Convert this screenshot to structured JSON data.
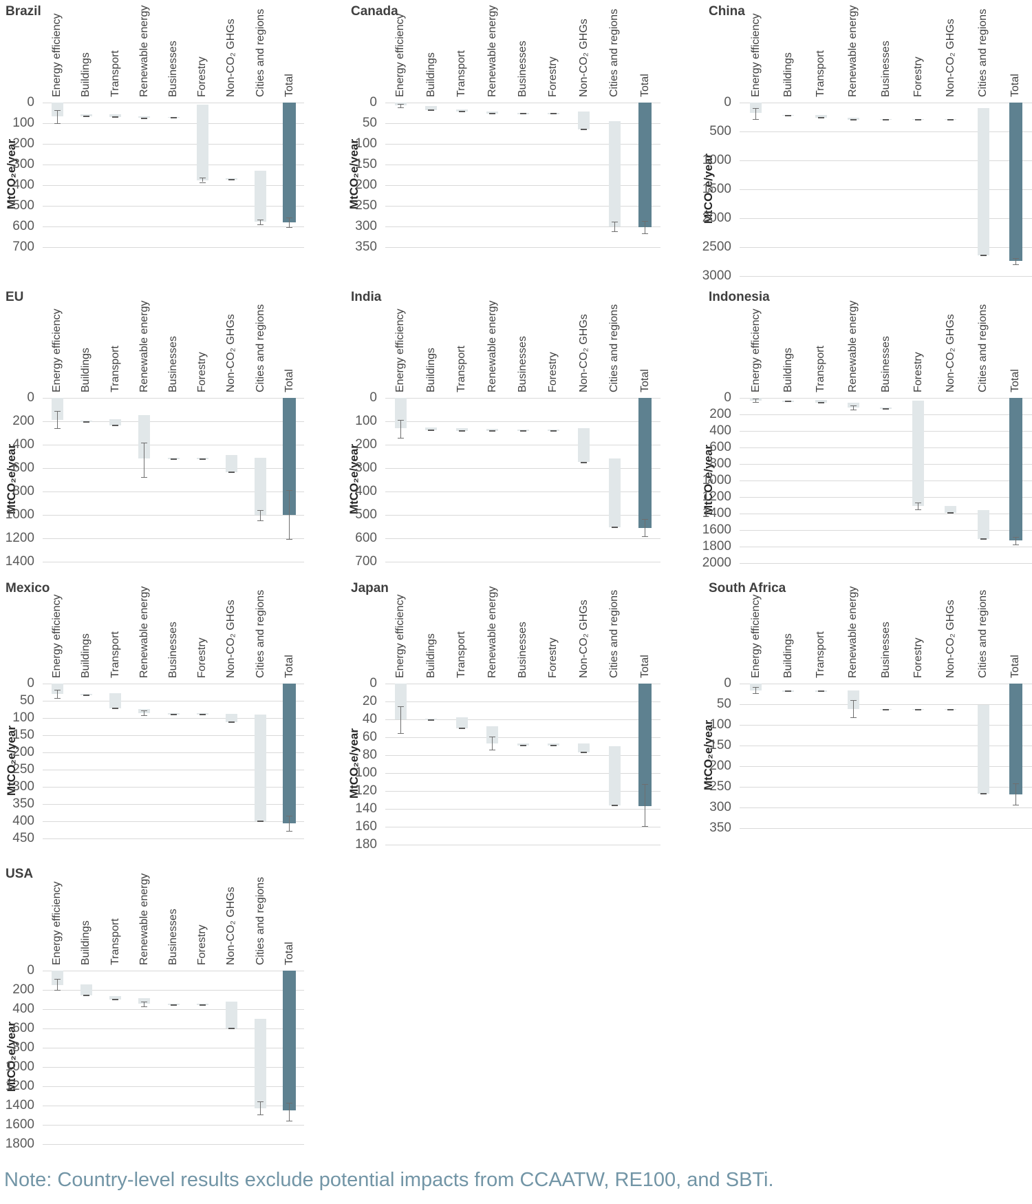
{
  "note": "Note: Country-level results exclude potential impacts from CCAATW, RE100, and SBTi.",
  "y_axis_label": "MtCO₂e/year",
  "colors": {
    "bar_light": "#e1e7e9",
    "bar_total": "#5e8190",
    "gridline": "#d9d9d9",
    "error_bar": "#6e6e6e",
    "marker_dash": "#595959",
    "title_text": "#3f3f3f",
    "tick_text": "#595959",
    "note_text": "#7295a6"
  },
  "categories": [
    "Energy efficiency",
    "Buildings",
    "Transport",
    "Renewable energy",
    "Businesses",
    "Forestry",
    "Non-CO₂ GHGs",
    "Cities and regions",
    "Total"
  ],
  "chart_data": [
    {
      "type": "bar",
      "title": "Brazil",
      "ylabel": "MtCO₂e/year",
      "ylim": [
        0,
        700
      ],
      "ytick_step": 100,
      "inverted_y": true,
      "grid_on": true,
      "grid": {
        "row": 0,
        "col": 0
      },
      "bars": [
        {
          "range": [
            0,
            68
          ],
          "error": [
            35,
            100
          ]
        },
        {
          "range": [
            58,
            66
          ],
          "error": null
        },
        {
          "range": [
            58,
            70
          ],
          "error": null
        },
        {
          "range": [
            66,
            75
          ],
          "error": null
        },
        {
          "range": [
            69,
            74
          ],
          "error": null
        },
        {
          "range": [
            10,
            375
          ],
          "error": [
            362,
            385
          ]
        },
        {
          "range": [
            366,
            372
          ],
          "error": null
        },
        {
          "range": [
            330,
            578
          ],
          "error": [
            566,
            590
          ]
        },
        {
          "range": [
            0,
            580
          ],
          "error": [
            556,
            602
          ]
        }
      ]
    },
    {
      "type": "bar",
      "title": "Canada",
      "ylabel": "MtCO₂e/year",
      "ylim": [
        0,
        350
      ],
      "ytick_step": 50,
      "inverted_y": true,
      "grid_on": true,
      "grid": {
        "row": 0,
        "col": 1
      },
      "bars": [
        {
          "range": [
            0,
            7
          ],
          "error": [
            3,
            11
          ]
        },
        {
          "range": [
            8,
            18
          ],
          "error": null
        },
        {
          "range": [
            16,
            22
          ],
          "error": null
        },
        {
          "range": [
            21,
            26
          ],
          "error": null
        },
        {
          "range": [
            25,
            27
          ],
          "error": null
        },
        {
          "range": [
            25,
            27
          ],
          "error": null
        },
        {
          "range": [
            22,
            65
          ],
          "error": null
        },
        {
          "range": [
            45,
            300
          ],
          "error": [
            288,
            311
          ]
        },
        {
          "range": [
            0,
            302
          ],
          "error": [
            287,
            317
          ]
        }
      ]
    },
    {
      "type": "bar",
      "title": "China",
      "ylabel": "MtCO₂e/year",
      "ylim": [
        0,
        3000
      ],
      "ytick_step": 500,
      "inverted_y": true,
      "grid_on": true,
      "grid": {
        "row": 0,
        "col": 2
      },
      "bars": [
        {
          "range": [
            0,
            180
          ],
          "error": [
            100,
            290
          ]
        },
        {
          "range": [
            212,
            228
          ],
          "error": null
        },
        {
          "range": [
            210,
            260
          ],
          "error": null
        },
        {
          "range": [
            258,
            300
          ],
          "error": null
        },
        {
          "range": [
            280,
            296
          ],
          "error": null
        },
        {
          "range": [
            280,
            296
          ],
          "error": null
        },
        {
          "range": [
            280,
            296
          ],
          "error": null
        },
        {
          "range": [
            95,
            2640
          ],
          "error": null
        },
        {
          "range": [
            0,
            2740
          ],
          "error": [
            2690,
            2800
          ]
        }
      ]
    },
    {
      "type": "bar",
      "title": "EU",
      "ylabel": "MtCO₂e/year",
      "ylim": [
        0,
        1400
      ],
      "ytick_step": 200,
      "inverted_y": true,
      "grid_on": true,
      "grid": {
        "row": 1,
        "col": 0
      },
      "bars": [
        {
          "range": [
            0,
            190
          ],
          "error": [
            110,
            260
          ]
        },
        {
          "range": [
            193,
            206
          ],
          "error": null
        },
        {
          "range": [
            185,
            235
          ],
          "error": null
        },
        {
          "range": [
            145,
            520
          ],
          "error": [
            380,
            675
          ]
        },
        {
          "range": [
            513,
            525
          ],
          "error": null
        },
        {
          "range": [
            513,
            525
          ],
          "error": null
        },
        {
          "range": [
            488,
            635
          ],
          "error": null
        },
        {
          "range": [
            510,
            1000
          ],
          "error": [
            958,
            1046
          ]
        },
        {
          "range": [
            0,
            1000
          ],
          "error": [
            788,
            1205
          ]
        }
      ]
    },
    {
      "type": "bar",
      "title": "India",
      "ylabel": "MtCO₂e/year",
      "ylim": [
        0,
        700
      ],
      "ytick_step": 100,
      "inverted_y": true,
      "grid_on": true,
      "grid": {
        "row": 1,
        "col": 1
      },
      "bars": [
        {
          "range": [
            0,
            130
          ],
          "error": [
            94,
            170
          ]
        },
        {
          "range": [
            127,
            137
          ],
          "error": null
        },
        {
          "range": [
            129,
            140
          ],
          "error": null
        },
        {
          "range": [
            133,
            141
          ],
          "error": null
        },
        {
          "range": [
            134,
            142
          ],
          "error": null
        },
        {
          "range": [
            134,
            142
          ],
          "error": null
        },
        {
          "range": [
            128,
            275
          ],
          "error": null
        },
        {
          "range": [
            258,
            553
          ],
          "error": null
        },
        {
          "range": [
            0,
            555
          ],
          "error": [
            517,
            592
          ]
        }
      ]
    },
    {
      "type": "bar",
      "title": "Indonesia",
      "ylabel": "MtCO₂e/year",
      "ylim": [
        0,
        2000
      ],
      "ytick_step": 200,
      "inverted_y": true,
      "grid_on": true,
      "grid": {
        "row": 1,
        "col": 2
      },
      "bars": [
        {
          "range": [
            0,
            30
          ],
          "error": [
            10,
            48
          ]
        },
        {
          "range": [
            34,
            44
          ],
          "error": null
        },
        {
          "range": [
            28,
            60
          ],
          "error": null
        },
        {
          "range": [
            55,
            115
          ],
          "error": [
            88,
            140
          ]
        },
        {
          "range": [
            118,
            130
          ],
          "error": null
        },
        {
          "range": [
            35,
            1310
          ],
          "error": [
            1263,
            1352
          ]
        },
        {
          "range": [
            1308,
            1395
          ],
          "error": null
        },
        {
          "range": [
            1355,
            1708
          ],
          "error": null
        },
        {
          "range": [
            0,
            1728
          ],
          "error": [
            1684,
            1775
          ]
        }
      ]
    },
    {
      "type": "bar",
      "title": "Mexico",
      "ylabel": "MtCO₂e/year",
      "ylim": [
        0,
        450
      ],
      "ytick_step": 50,
      "inverted_y": true,
      "grid_on": true,
      "grid": {
        "row": 2,
        "col": 0
      },
      "bars": [
        {
          "range": [
            0,
            30
          ],
          "error": [
            17,
            42
          ]
        },
        {
          "range": [
            29,
            34
          ],
          "error": null
        },
        {
          "range": [
            28,
            72
          ],
          "error": null
        },
        {
          "range": [
            74,
            86
          ],
          "error": [
            77,
            92
          ]
        },
        {
          "range": [
            85,
            90
          ],
          "error": null
        },
        {
          "range": [
            85,
            90
          ],
          "error": null
        },
        {
          "range": [
            87,
            112
          ],
          "error": null
        },
        {
          "range": [
            90,
            400
          ],
          "error": null
        },
        {
          "range": [
            0,
            405
          ],
          "error": [
            384,
            428
          ]
        }
      ]
    },
    {
      "type": "bar",
      "title": "Japan",
      "ylabel": "MtCO₂e/year",
      "ylim": [
        0,
        180
      ],
      "ytick_step": 20,
      "inverted_y": true,
      "grid_on": true,
      "grid": {
        "row": 2,
        "col": 1
      },
      "bars": [
        {
          "range": [
            0,
            40
          ],
          "error": [
            25,
            55
          ]
        },
        {
          "range": [
            39,
            41
          ],
          "error": null
        },
        {
          "range": [
            38,
            50
          ],
          "error": null
        },
        {
          "range": [
            48,
            67
          ],
          "error": [
            59,
            74
          ]
        },
        {
          "range": [
            67,
            69
          ],
          "error": null
        },
        {
          "range": [
            67,
            69
          ],
          "error": null
        },
        {
          "range": [
            67,
            77
          ],
          "error": null
        },
        {
          "range": [
            70,
            136
          ],
          "error": null
        },
        {
          "range": [
            0,
            137
          ],
          "error": [
            112,
            159
          ]
        }
      ]
    },
    {
      "type": "bar",
      "title": "South Africa",
      "ylabel": "MtCO₂e/year",
      "ylim": [
        0,
        350
      ],
      "ytick_step": 50,
      "inverted_y": true,
      "grid_on": true,
      "grid": {
        "row": 2,
        "col": 2
      },
      "bars": [
        {
          "range": [
            0,
            17
          ],
          "error": [
            8,
            23
          ]
        },
        {
          "range": [
            17,
            19
          ],
          "error": null
        },
        {
          "range": [
            17,
            19
          ],
          "error": null
        },
        {
          "range": [
            17,
            62
          ],
          "error": [
            40,
            82
          ]
        },
        {
          "range": [
            61,
            63
          ],
          "error": null
        },
        {
          "range": [
            61,
            63
          ],
          "error": null
        },
        {
          "range": [
            61,
            63
          ],
          "error": null
        },
        {
          "range": [
            52,
            267
          ],
          "error": null
        },
        {
          "range": [
            0,
            268
          ],
          "error": [
            241,
            293
          ]
        }
      ]
    },
    {
      "type": "bar",
      "title": "USA",
      "ylabel": "MtCO₂e/year",
      "ylim": [
        0,
        1800
      ],
      "ytick_step": 200,
      "inverted_y": true,
      "grid_on": true,
      "grid": {
        "row": 3,
        "col": 0
      },
      "bars": [
        {
          "range": [
            0,
            150
          ],
          "error": [
            88,
            200
          ]
        },
        {
          "range": [
            140,
            260
          ],
          "error": null
        },
        {
          "range": [
            262,
            298
          ],
          "error": null
        },
        {
          "range": [
            288,
            345
          ],
          "error": [
            318,
            372
          ]
        },
        {
          "range": [
            345,
            357
          ],
          "error": null
        },
        {
          "range": [
            345,
            357
          ],
          "error": null
        },
        {
          "range": [
            318,
            600
          ],
          "error": null
        },
        {
          "range": [
            500,
            1428
          ],
          "error": [
            1358,
            1492
          ]
        },
        {
          "range": [
            0,
            1450
          ],
          "error": [
            1374,
            1556
          ]
        }
      ]
    }
  ]
}
